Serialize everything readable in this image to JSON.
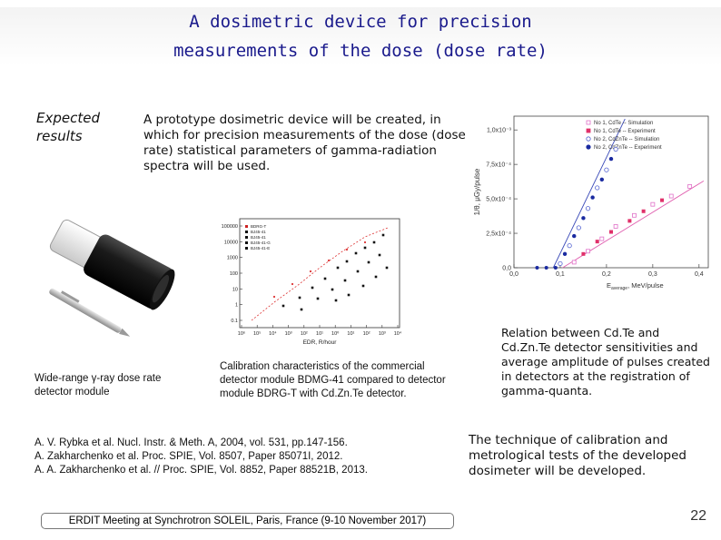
{
  "slide": {
    "title_line1": "A dosimetric device for precision",
    "title_line2": "measurements of the dose (dose rate)",
    "expected_line1": "Expected",
    "expected_line2": "results",
    "prototype_text": "A prototype dosimetric device will be created, in which for precision measurements of the dose (dose rate) statistical parameters of gamma-radiation spectra will be used.",
    "detector_caption": "Wide-range γ-ray dose rate detector module",
    "calibration_caption": "Calibration characteristics of the commercial detector module BDMG-41 compared to detector module BDRG-T with Cd.Zn.Te detector.",
    "relation_text": "Relation between Cd.Te and Cd.Zn.Te detector sensitivities and average amplitude of pulses created in detectors at the registration of gamma-quanta.",
    "references": [
      "A. V. Rybka et al. Nucl. Instr. & Meth. A, 2004, vol. 531, pp.147-156.",
      "A. Zakharchenko et al. Proc. SPIE, Vol. 8507, Paper 85071I, 2012.",
      "A. A. Zakharchenko et al. // Proc. SPIE, Vol. 8852, Paper 88521B, 2013."
    ],
    "technique_text": "The technique of calibration and metrological tests of the developed dosimeter will be developed.",
    "footer": "ERDIT Meeting at Synchrotron SOLEIL, Paris, France (9-10 November 2017)",
    "page_number": "22"
  },
  "calib_plot": {
    "xlabel": "EDR, R/hour",
    "y_ticks": [
      "100000",
      "10000",
      "1000",
      "100",
      "10",
      "1",
      "0.1"
    ],
    "x_ticks": [
      "10⁶",
      "10⁵",
      "10⁴",
      "10³",
      "10²",
      "10¹",
      "10⁰",
      "10¹",
      "10²",
      "10³",
      "10⁴"
    ],
    "legend": [
      "BDRG-T",
      "BJ45-41",
      "BJ45-41",
      "BJ45-41-G",
      "BJ45-41-E"
    ]
  },
  "sensitivity_graph": {
    "ylabel": "1/θ, μGy/pulse",
    "xlabel": "E",
    "xlabel_sub": "average",
    "xlabel_unit": ", MeV/pulse",
    "y_ticks": [
      "1,0x10⁻³",
      "7,5x10⁻⁴",
      "5,0x10⁻⁴",
      "2,5x10⁻⁴",
      "0,0"
    ],
    "x_ticks": [
      "0,0",
      "0,1",
      "0,2",
      "0,3",
      "0,4"
    ],
    "legend": [
      {
        "label": "No 1, CdTe -- Simulation",
        "color": "#e070c8"
      },
      {
        "label": "No 1, CdTe -- Experiment",
        "color": "#e0306a"
      },
      {
        "label": "No 2, CdZnTe -- Simulation",
        "color": "#5060d0"
      },
      {
        "label": "No 2, CdZnTe -- Experiment",
        "color": "#1a2aa0"
      }
    ]
  }
}
